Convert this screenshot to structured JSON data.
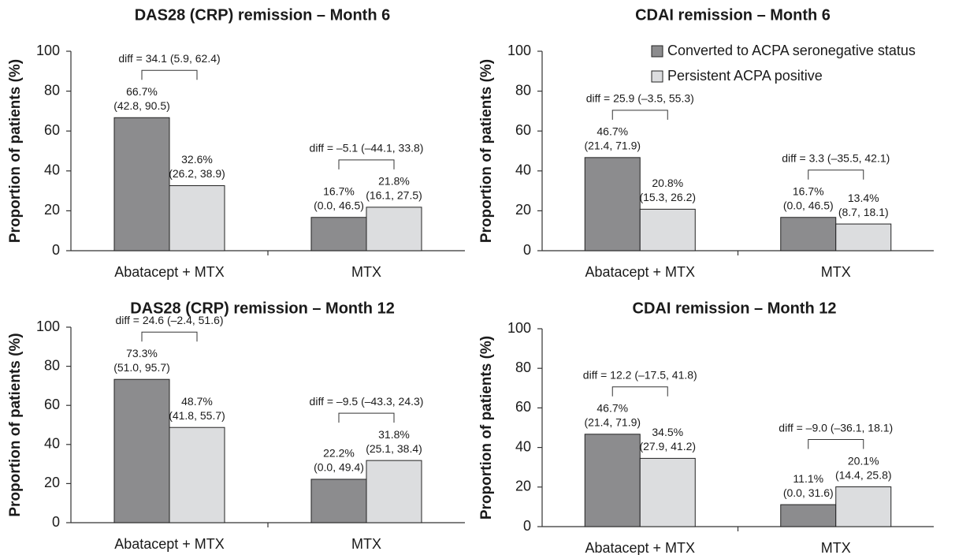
{
  "chart_data": [
    {
      "type": "bar",
      "title": "DAS28 (CRP) remission – Month 6",
      "ylabel": "Proportion of patients (%)",
      "categories": [
        "Abatacept + MTX",
        "MTX"
      ],
      "series": [
        {
          "color": "#8c8c8e",
          "values": [
            66.7,
            16.7
          ],
          "value_labels": [
            "66.7%",
            "16.7%"
          ],
          "ci_labels": [
            "(42.8, 90.5)",
            "(0.0, 46.5)"
          ]
        },
        {
          "color": "#dcdddf",
          "values": [
            32.6,
            21.8
          ],
          "value_labels": [
            "32.6%",
            "21.8%"
          ],
          "ci_labels": [
            "(26.2, 38.9)",
            "(16.1, 27.5)"
          ]
        }
      ],
      "annotations": [
        "diff = 34.1 (5.9, 62.4)",
        "diff = –5.1 (–44.1, 33.8)"
      ],
      "ylim": [
        0,
        100
      ],
      "yticks": [
        0,
        20,
        40,
        60,
        80,
        100
      ]
    },
    {
      "type": "bar",
      "title": "CDAI remission – Month 6",
      "ylabel": "Proportion of patients (%)",
      "categories": [
        "Abatacept + MTX",
        "MTX"
      ],
      "series": [
        {
          "name": "Converted to ACPA seronegative status",
          "color": "#8c8c8e",
          "values": [
            46.7,
            16.7
          ],
          "value_labels": [
            "46.7%",
            "16.7%"
          ],
          "ci_labels": [
            "(21.4, 71.9)",
            "(0.0, 46.5)"
          ]
        },
        {
          "name": "Persistent ACPA positive",
          "color": "#dcdddf",
          "values": [
            20.8,
            13.4
          ],
          "value_labels": [
            "20.8%",
            "13.4%"
          ],
          "ci_labels": [
            "(15.3, 26.2)",
            "(8.7, 18.1)"
          ]
        }
      ],
      "annotations": [
        "diff = 25.9 (–3.5, 55.3)",
        "diff = 3.3 (–35.5, 42.1)"
      ],
      "ylim": [
        0,
        100
      ],
      "yticks": [
        0,
        20,
        40,
        60,
        80,
        100
      ],
      "legend": "upper right"
    },
    {
      "type": "bar",
      "title": "DAS28 (CRP) remission – Month 12",
      "ylabel": "Proportion of patients (%)",
      "categories": [
        "Abatacept + MTX",
        "MTX"
      ],
      "series": [
        {
          "color": "#8c8c8e",
          "values": [
            73.3,
            22.2
          ],
          "value_labels": [
            "73.3%",
            "22.2%"
          ],
          "ci_labels": [
            "(51.0, 95.7)",
            "(0.0, 49.4)"
          ]
        },
        {
          "color": "#dcdddf",
          "values": [
            48.7,
            31.8
          ],
          "value_labels": [
            "48.7%",
            "31.8%"
          ],
          "ci_labels": [
            "(41.8, 55.7)",
            "(25.1, 38.4)"
          ]
        }
      ],
      "annotations": [
        "diff = 24.6 (–2.4, 51.6)",
        "diff = –9.5 (–43.3, 24.3)"
      ],
      "ylim": [
        0,
        100
      ],
      "yticks": [
        0,
        20,
        40,
        60,
        80,
        100
      ]
    },
    {
      "type": "bar",
      "title": "CDAI remission – Month 12",
      "ylabel": "Proportion of patients (%)",
      "categories": [
        "Abatacept + MTX",
        "MTX"
      ],
      "series": [
        {
          "color": "#8c8c8e",
          "values": [
            46.7,
            11.1
          ],
          "value_labels": [
            "46.7%",
            "11.1%"
          ],
          "ci_labels": [
            "(21.4, 71.9)",
            "(0.0, 31.6)"
          ]
        },
        {
          "color": "#dcdddf",
          "values": [
            34.5,
            20.1
          ],
          "value_labels": [
            "34.5%",
            "20.1%"
          ],
          "ci_labels": [
            "(27.9, 41.2)",
            "(14.4, 25.8)"
          ]
        }
      ],
      "annotations": [
        "diff = 12.2 (–17.5, 41.8)",
        "diff = –9.0 (–36.1, 18.1)"
      ],
      "ylim": [
        0,
        100
      ],
      "yticks": [
        0,
        20,
        40,
        60,
        80,
        100
      ]
    }
  ]
}
